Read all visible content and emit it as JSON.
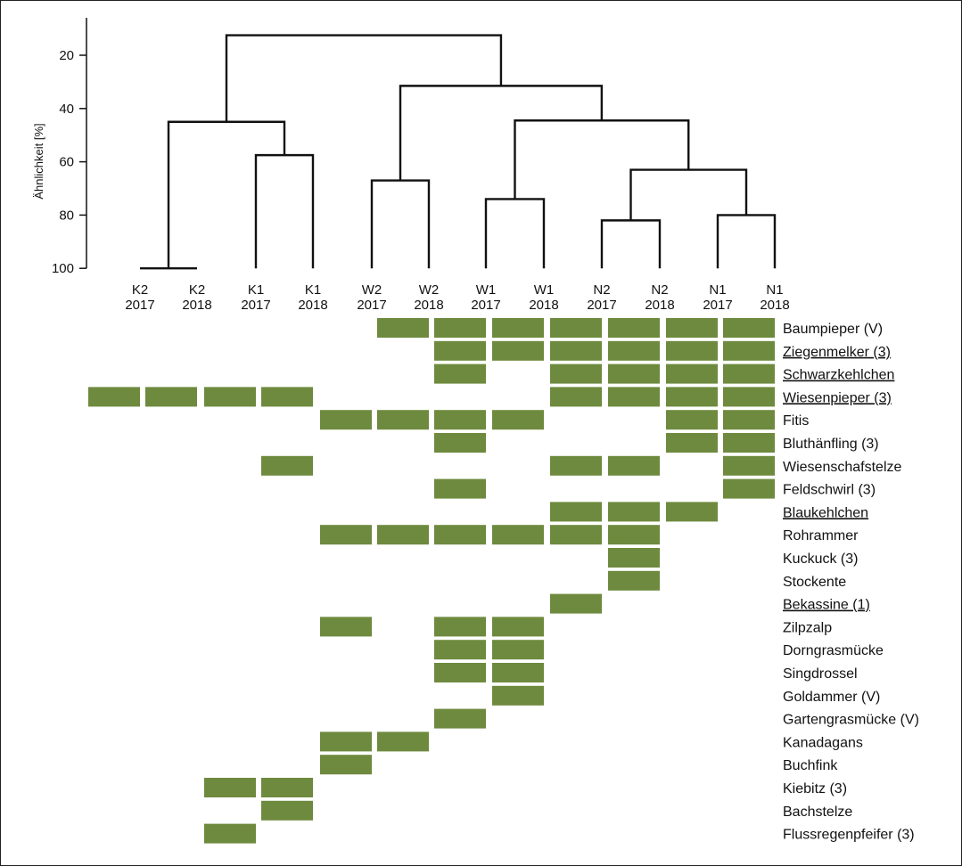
{
  "chart_data": [
    {
      "type": "dendrogram",
      "ylabel": "Ähnlichkeit [%]",
      "yticks": [
        20,
        40,
        60,
        80,
        100
      ],
      "ylim": [
        8,
        100
      ],
      "leaves": [
        {
          "site": "K2",
          "year": "2017"
        },
        {
          "site": "K2",
          "year": "2018"
        },
        {
          "site": "K1",
          "year": "2017"
        },
        {
          "site": "K1",
          "year": "2018"
        },
        {
          "site": "W2",
          "year": "2017"
        },
        {
          "site": "W2",
          "year": "2018"
        },
        {
          "site": "W1",
          "year": "2017"
        },
        {
          "site": "W1",
          "year": "2018"
        },
        {
          "site": "N2",
          "year": "2017"
        },
        {
          "site": "N2",
          "year": "2018"
        },
        {
          "site": "N1",
          "year": "2017"
        },
        {
          "site": "N1",
          "year": "2018"
        }
      ],
      "merges": [
        {
          "left": "K2 2017",
          "right": "K2 2018",
          "similarity": 100
        },
        {
          "left": "K1 2017",
          "right": "K1 2018",
          "similarity": 57.5
        },
        {
          "left": "K2",
          "right": "K1",
          "similarity": 45
        },
        {
          "left": "W2 2017",
          "right": "W2 2018",
          "similarity": 67
        },
        {
          "left": "W1 2017",
          "right": "W1 2018",
          "similarity": 74
        },
        {
          "left": "N2 2017",
          "right": "N2 2018",
          "similarity": 82
        },
        {
          "left": "N1 2017",
          "right": "N1 2018",
          "similarity": 80
        },
        {
          "left": "N2",
          "right": "N1",
          "similarity": 63
        },
        {
          "left": "W1",
          "right": "N",
          "similarity": 44.5
        },
        {
          "left": "W2",
          "right": "W1+N",
          "similarity": 31.5
        },
        {
          "left": "K",
          "right": "W+N",
          "similarity": 12.5
        }
      ]
    },
    {
      "type": "heatmap",
      "description_values": "presence matrix, 1 = species recorded, columns follow dendrogram leaf order",
      "color": "#6e8a3e",
      "species": [
        {
          "name": "Baumpieper (V)",
          "underlined": false,
          "presence": [
            0,
            0,
            0,
            0,
            0,
            1,
            1,
            1,
            1,
            1,
            1,
            1
          ]
        },
        {
          "name": "Ziegenmelker (3)",
          "underlined": true,
          "presence": [
            0,
            0,
            0,
            0,
            0,
            0,
            1,
            1,
            1,
            1,
            1,
            1
          ]
        },
        {
          "name": "Schwarzkehlchen",
          "underlined": true,
          "presence": [
            0,
            0,
            0,
            0,
            0,
            0,
            1,
            0,
            1,
            1,
            1,
            1
          ]
        },
        {
          "name": "Wiesenpieper (3)",
          "underlined": true,
          "presence": [
            1,
            1,
            1,
            1,
            0,
            0,
            0,
            0,
            1,
            1,
            1,
            1
          ]
        },
        {
          "name": "Fitis",
          "underlined": false,
          "presence": [
            0,
            0,
            0,
            0,
            1,
            1,
            1,
            1,
            0,
            0,
            1,
            1
          ]
        },
        {
          "name": "Bluthänfling (3)",
          "underlined": false,
          "presence": [
            0,
            0,
            0,
            0,
            0,
            0,
            1,
            0,
            0,
            0,
            1,
            1
          ]
        },
        {
          "name": "Wiesenschafstelze",
          "underlined": false,
          "presence": [
            0,
            0,
            0,
            1,
            0,
            0,
            0,
            0,
            1,
            1,
            0,
            1
          ]
        },
        {
          "name": "Feldschwirl (3)",
          "underlined": false,
          "presence": [
            0,
            0,
            0,
            0,
            0,
            0,
            1,
            0,
            0,
            0,
            0,
            1
          ]
        },
        {
          "name": "Blaukehlchen",
          "underlined": true,
          "presence": [
            0,
            0,
            0,
            0,
            0,
            0,
            0,
            0,
            1,
            1,
            1,
            0
          ]
        },
        {
          "name": "Rohrammer",
          "underlined": false,
          "presence": [
            0,
            0,
            0,
            0,
            1,
            1,
            1,
            1,
            1,
            1,
            0,
            0
          ]
        },
        {
          "name": "Kuckuck (3)",
          "underlined": false,
          "presence": [
            0,
            0,
            0,
            0,
            0,
            0,
            0,
            0,
            0,
            1,
            0,
            0
          ]
        },
        {
          "name": "Stockente",
          "underlined": false,
          "presence": [
            0,
            0,
            0,
            0,
            0,
            0,
            0,
            0,
            0,
            1,
            0,
            0
          ]
        },
        {
          "name": "Bekassine (1)",
          "underlined": true,
          "presence": [
            0,
            0,
            0,
            0,
            0,
            0,
            0,
            0,
            1,
            0,
            0,
            0
          ]
        },
        {
          "name": "Zilpzalp",
          "underlined": false,
          "presence": [
            0,
            0,
            0,
            0,
            1,
            0,
            1,
            1,
            0,
            0,
            0,
            0
          ]
        },
        {
          "name": "Dorngrasmücke",
          "underlined": false,
          "presence": [
            0,
            0,
            0,
            0,
            0,
            0,
            1,
            1,
            0,
            0,
            0,
            0
          ]
        },
        {
          "name": "Singdrossel",
          "underlined": false,
          "presence": [
            0,
            0,
            0,
            0,
            0,
            0,
            1,
            1,
            0,
            0,
            0,
            0
          ]
        },
        {
          "name": "Goldammer (V)",
          "underlined": false,
          "presence": [
            0,
            0,
            0,
            0,
            0,
            0,
            0,
            1,
            0,
            0,
            0,
            0
          ]
        },
        {
          "name": "Gartengrasmücke (V)",
          "underlined": false,
          "presence": [
            0,
            0,
            0,
            0,
            0,
            0,
            1,
            0,
            0,
            0,
            0,
            0
          ]
        },
        {
          "name": "Kanadagans",
          "underlined": false,
          "presence": [
            0,
            0,
            0,
            0,
            1,
            1,
            0,
            0,
            0,
            0,
            0,
            0
          ]
        },
        {
          "name": "Buchfink",
          "underlined": false,
          "presence": [
            0,
            0,
            0,
            0,
            1,
            0,
            0,
            0,
            0,
            0,
            0,
            0
          ]
        },
        {
          "name": "Kiebitz (3)",
          "underlined": false,
          "presence": [
            0,
            0,
            1,
            1,
            0,
            0,
            0,
            0,
            0,
            0,
            0,
            0
          ]
        },
        {
          "name": "Bachstelze",
          "underlined": false,
          "presence": [
            0,
            0,
            0,
            1,
            0,
            0,
            0,
            0,
            0,
            0,
            0,
            0
          ]
        },
        {
          "name": "Flussregenpfeifer (3)",
          "underlined": false,
          "presence": [
            0,
            0,
            1,
            0,
            0,
            0,
            0,
            0,
            0,
            0,
            0,
            0
          ]
        }
      ]
    }
  ]
}
